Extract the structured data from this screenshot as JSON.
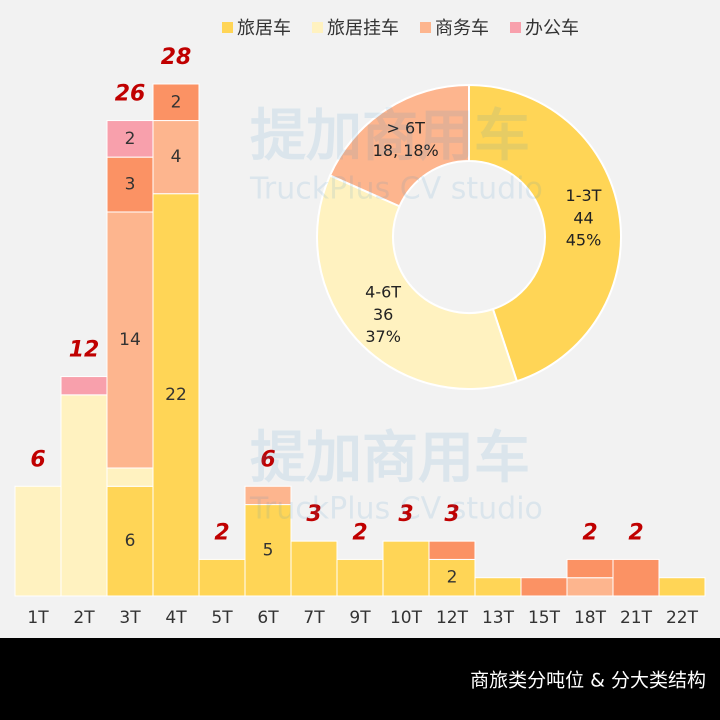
{
  "chart_data": [
    {
      "type": "stacked-bar",
      "categories": [
        "1T",
        "2T",
        "3T",
        "4T",
        "5T",
        "6T",
        "7T",
        "9T",
        "10T",
        "12T",
        "13T",
        "15T",
        "18T",
        "21T",
        "22T"
      ],
      "series": [
        {
          "name": "旅居车",
          "color": "#ffd556",
          "values": [
            null,
            null,
            6,
            22,
            2,
            5,
            3,
            2,
            3,
            2,
            1,
            null,
            null,
            null,
            1
          ],
          "value_labels": [
            null,
            null,
            "6",
            "22",
            null,
            "5",
            null,
            null,
            null,
            "2",
            null,
            null,
            null,
            null,
            null
          ]
        },
        {
          "name": "旅居挂车",
          "color": "#fff2c0",
          "values": [
            6,
            11,
            1,
            null,
            null,
            null,
            null,
            null,
            null,
            null,
            null,
            null,
            null,
            null,
            null
          ],
          "value_labels": [
            null,
            null,
            null,
            null,
            null,
            null,
            null,
            null,
            null,
            null,
            null,
            null,
            null,
            null,
            null
          ]
        },
        {
          "name": "商务车",
          "color": "#fdb58e",
          "values": [
            null,
            null,
            14,
            4,
            null,
            1,
            null,
            null,
            null,
            null,
            null,
            null,
            1,
            null,
            null
          ],
          "value_labels": [
            null,
            null,
            "14",
            "4",
            null,
            null,
            null,
            null,
            null,
            null,
            null,
            null,
            null,
            null,
            null
          ]
        },
        {
          "name": null,
          "color": "#fb9264",
          "values": [
            null,
            null,
            3,
            2,
            null,
            null,
            null,
            null,
            null,
            1,
            null,
            1,
            1,
            2,
            null
          ],
          "value_labels": [
            null,
            null,
            "3",
            "2",
            null,
            null,
            null,
            null,
            null,
            null,
            null,
            null,
            null,
            null,
            null
          ]
        },
        {
          "name": "办公车",
          "color": "#f8a0ac",
          "values": [
            null,
            1,
            2,
            null,
            null,
            null,
            null,
            null,
            null,
            null,
            null,
            null,
            null,
            null,
            null
          ],
          "value_labels": [
            null,
            null,
            "2",
            null,
            null,
            null,
            null,
            null,
            null,
            null,
            null,
            null,
            null,
            null,
            null
          ]
        }
      ],
      "totals": [
        6,
        12,
        26,
        28,
        2,
        6,
        3,
        2,
        3,
        3,
        null,
        null,
        2,
        2,
        null
      ],
      "ylim": [
        0,
        30
      ]
    },
    {
      "type": "donut",
      "categories": [
        "1-3T",
        "4-6T",
        "> 6T"
      ],
      "values": [
        44,
        36,
        18
      ],
      "value_labels": [
        "44\n45%",
        "36\n37%",
        "18, 18%"
      ],
      "colors": [
        "#ffd556",
        "#fff2c0",
        "#fdb58e"
      ]
    }
  ],
  "watermark": [
    "提加商用车",
    "TruckPlus CV studio"
  ],
  "caption": "商旅类分吨位 & 分大类结构"
}
